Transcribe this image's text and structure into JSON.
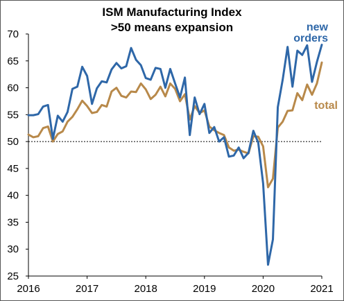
{
  "chart_data": {
    "type": "line",
    "title": "ISM Manufacturing Index",
    "subtitle": ">50 means expansion",
    "xlabel": "",
    "ylabel": "",
    "x_tick_labels": [
      "2016",
      "2017",
      "2018",
      "2019",
      "2020",
      "2021"
    ],
    "x_tick_values": [
      2016,
      2017,
      2018,
      2019,
      2020,
      2021
    ],
    "xlim": [
      2016,
      2021
    ],
    "ylim": [
      25,
      70
    ],
    "y_ticks": [
      25,
      30,
      35,
      40,
      45,
      50,
      55,
      60,
      65,
      70
    ],
    "grid": false,
    "reference_line": {
      "y": 50,
      "style": "dotted"
    },
    "series": [
      {
        "name": "new orders",
        "color": "#2e67a8",
        "label_lines": [
          "new",
          "orders"
        ],
        "start": 2016,
        "step_months": 1,
        "values": [
          54.9,
          54.9,
          55.1,
          56.5,
          56.8,
          50.5,
          54.8,
          53.7,
          55.5,
          59.8,
          60.2,
          63.9,
          62.2,
          57.0,
          59.9,
          61.2,
          61.0,
          63.4,
          64.6,
          63.6,
          64.0,
          67.4,
          65.2,
          64.2,
          61.8,
          61.5,
          63.7,
          63.5,
          60.0,
          63.5,
          60.8,
          58.2,
          61.9,
          51.2,
          58.2,
          55.1,
          57.0,
          51.6,
          52.7,
          50.0,
          50.8,
          47.2,
          47.4,
          48.9,
          46.9,
          47.9,
          52.0,
          49.8,
          42.2,
          27.1,
          31.8,
          56.4,
          61.5,
          67.6,
          60.2,
          66.9,
          66.1,
          67.9,
          61.1,
          64.8,
          68.0
        ],
        "label_color": "#2e67a8"
      },
      {
        "name": "total",
        "color": "#b8894a",
        "label_lines": [
          "total"
        ],
        "start": 2016,
        "step_months": 1,
        "values": [
          51.3,
          50.8,
          51.0,
          52.5,
          52.8,
          50.0,
          51.4,
          51.9,
          53.7,
          54.6,
          56.0,
          57.6,
          56.6,
          55.3,
          55.5,
          56.8,
          56.5,
          59.3,
          60.0,
          58.5,
          58.2,
          59.3,
          59.2,
          60.8,
          59.7,
          57.9,
          58.7,
          60.2,
          58.4,
          60.8,
          59.8,
          57.5,
          58.8,
          54.1,
          56.6,
          55.3,
          55.8,
          52.8,
          52.1,
          51.6,
          51.2,
          48.9,
          48.3,
          48.5,
          48.1,
          47.8,
          51.0,
          50.9,
          49.1,
          41.5,
          43.1,
          52.6,
          53.7,
          55.7,
          55.8,
          59.0,
          57.7,
          60.6,
          58.7,
          60.8,
          64.7
        ],
        "label_color": "#b8894a"
      }
    ]
  }
}
